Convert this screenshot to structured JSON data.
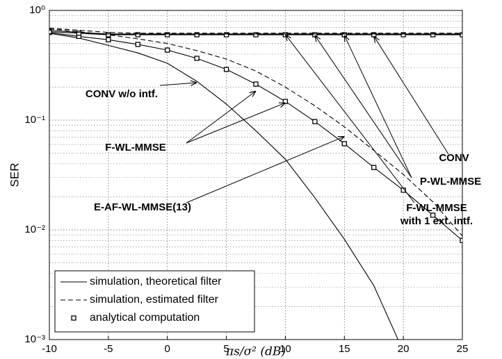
{
  "chart_data": {
    "type": "line",
    "ylabel": "SER",
    "xlabel": "πs/σ² (dB)",
    "x": [
      -10,
      -7.5,
      -5,
      -2.5,
      0,
      2.5,
      5,
      7.5,
      10,
      12.5,
      15,
      17.5,
      20,
      22.5,
      25
    ],
    "xlim": [
      -10,
      25
    ],
    "xticks": [
      -10,
      -5,
      0,
      5,
      10,
      15,
      20,
      25
    ],
    "ylim": [
      0.001,
      1
    ],
    "log_y": true,
    "yticks": [
      {
        "value": 0.001,
        "label": "10⁻³"
      },
      {
        "value": 0.01,
        "label": "10⁻²"
      },
      {
        "value": 0.1,
        "label": "10⁻¹"
      },
      {
        "value": 1,
        "label": "10⁰"
      }
    ],
    "grid": true,
    "minor_grid": true,
    "series": [
      {
        "name": "CONV w/o intf.",
        "color": "#000000",
        "style": "solid",
        "markers": false,
        "values": [
          0.62,
          0.56,
          0.48,
          0.41,
          0.33,
          0.226,
          0.14,
          0.08,
          0.044,
          0.0196,
          0.0082,
          0.0031,
          0.00078,
          null,
          null
        ]
      },
      {
        "name": "F-WL-MMSE",
        "color": "#000000",
        "style": "solid",
        "markers": true,
        "values": [
          0.63,
          0.58,
          0.54,
          0.49,
          0.435,
          0.366,
          0.29,
          0.213,
          0.148,
          0.097,
          0.061,
          0.037,
          0.023,
          0.0136,
          0.008
        ]
      },
      {
        "name": "E-AF-WL-MMSE(13)",
        "color": "#000000",
        "style": "dashed",
        "markers": false,
        "values": [
          0.68,
          0.64,
          0.6,
          0.55,
          0.5,
          0.43,
          0.36,
          0.28,
          0.2,
          0.135,
          0.087,
          0.053,
          0.032,
          0.018,
          0.0088
        ]
      },
      {
        "name": "CONV",
        "color": "#000000",
        "style": "solid",
        "markers": true,
        "values": [
          0.64,
          0.62,
          0.6,
          0.6,
          0.6,
          0.6,
          0.6,
          0.6,
          0.6,
          0.6,
          0.6,
          0.6,
          0.6,
          0.6,
          0.6
        ]
      },
      {
        "name": "P-WL-MMSE",
        "color": "#000000",
        "style": "solid",
        "markers": false,
        "values": [
          0.66,
          0.63,
          0.61,
          0.61,
          0.61,
          0.61,
          0.61,
          0.61,
          0.61,
          0.61,
          0.61,
          0.61,
          0.61,
          0.61,
          0.61
        ]
      },
      {
        "name": "F-WL-MMSE with 1 ext. intf.",
        "color": "#000000",
        "style": "dashed",
        "markers": false,
        "values": [
          0.69,
          0.66,
          0.63,
          0.62,
          0.62,
          0.62,
          0.62,
          0.62,
          0.62,
          0.62,
          0.62,
          0.62,
          0.62,
          0.62,
          0.62
        ]
      }
    ],
    "legend": {
      "loc": "lower left",
      "entries": [
        {
          "label": "simulation, theoretical filter",
          "style": "solid"
        },
        {
          "label": "simulation, estimated filter",
          "style": "dashed"
        },
        {
          "label": "analytical computation",
          "style": "markers"
        }
      ]
    }
  }
}
